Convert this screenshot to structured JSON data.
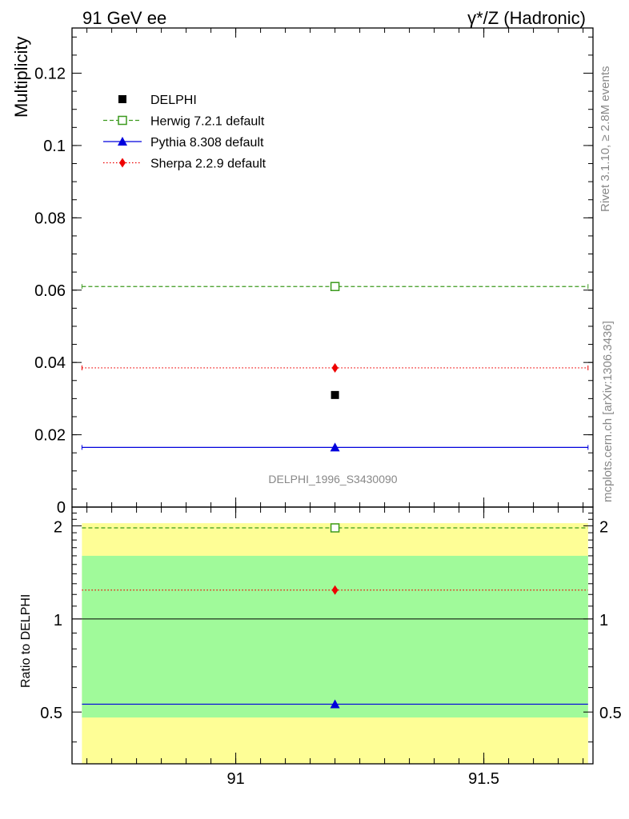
{
  "header": {
    "left": "91 GeV ee",
    "right": "γ*/Z (Hadronic)"
  },
  "side_text": {
    "rivet": "Rivet 3.1.10, ≥ 2.8M events",
    "mcplots": "mcplots.cern.ch [arXiv:1306.3436]"
  },
  "colors": {
    "herwig": "#3c9a1e",
    "pythia": "#0000dd",
    "sherpa": "#ee0000",
    "data": "#000000",
    "band_inner": "#a0fa9a",
    "band_outer": "#fefe96"
  },
  "chart_data": [
    {
      "type": "scatter",
      "ylabel": "Multiplicity",
      "analysis_label": "DELPHI_1996_S3430090",
      "xlim": [
        90.67,
        91.72
      ],
      "ylim": [
        0,
        0.1325
      ],
      "yticks": [
        0,
        0.02,
        0.04,
        0.06,
        0.08,
        0.1,
        0.12
      ],
      "ytick_labels": [
        "0",
        "0.02",
        "0.04",
        "0.06",
        "0.08",
        "0.1",
        "0.12"
      ],
      "legend_position": "top-left",
      "series": [
        {
          "name": "DELPHI",
          "key": "data",
          "x": [
            91.2
          ],
          "y": [
            0.031
          ],
          "marker": "square"
        },
        {
          "name": "Herwig 7.2.1 default",
          "key": "herwig",
          "x": [
            91.2
          ],
          "y": [
            0.061
          ],
          "xrange": [
            90.69,
            91.71
          ],
          "marker": "open-square",
          "line": "dashed"
        },
        {
          "name": "Pythia 8.308 default",
          "key": "pythia",
          "x": [
            91.2
          ],
          "y": [
            0.0165
          ],
          "xrange": [
            90.69,
            91.71
          ],
          "marker": "triangle",
          "line": "solid"
        },
        {
          "name": "Sherpa 2.2.9 default",
          "key": "sherpa",
          "x": [
            91.2
          ],
          "y": [
            0.0385
          ],
          "xrange": [
            90.69,
            91.71
          ],
          "marker": "diamond",
          "line": "dotted"
        }
      ]
    },
    {
      "type": "scatter",
      "ylabel": "Ratio to DELPHI",
      "xlim": [
        90.67,
        91.72
      ],
      "ylim": [
        0.34,
        2.3
      ],
      "xticks": [
        91,
        91.5
      ],
      "xtick_labels": [
        "91",
        "91.5"
      ],
      "yticks": [
        0.5,
        1,
        2
      ],
      "ytick_labels": [
        "0.5",
        "1",
        "2"
      ],
      "reference_line": 1,
      "bands": [
        {
          "key": "band_outer",
          "range": [
            0.34,
            2.04
          ]
        },
        {
          "key": "band_inner",
          "range": [
            0.48,
            1.6
          ]
        }
      ],
      "band_xrange": [
        90.69,
        91.71
      ],
      "series": [
        {
          "name": "Herwig 7.2.1 default",
          "key": "herwig",
          "x": [
            91.2
          ],
          "y": [
            1.97
          ],
          "xrange": [
            90.69,
            91.71
          ],
          "marker": "open-square",
          "line": "dashed"
        },
        {
          "name": "Pythia 8.308 default",
          "key": "pythia",
          "x": [
            91.2
          ],
          "y": [
            0.53
          ],
          "xrange": [
            90.69,
            91.71
          ],
          "marker": "triangle",
          "line": "solid"
        },
        {
          "name": "Sherpa 2.2.9 default",
          "key": "sherpa",
          "x": [
            91.2
          ],
          "y": [
            1.24
          ],
          "xrange": [
            90.69,
            91.71
          ],
          "marker": "diamond",
          "line": "dotted"
        }
      ]
    }
  ]
}
